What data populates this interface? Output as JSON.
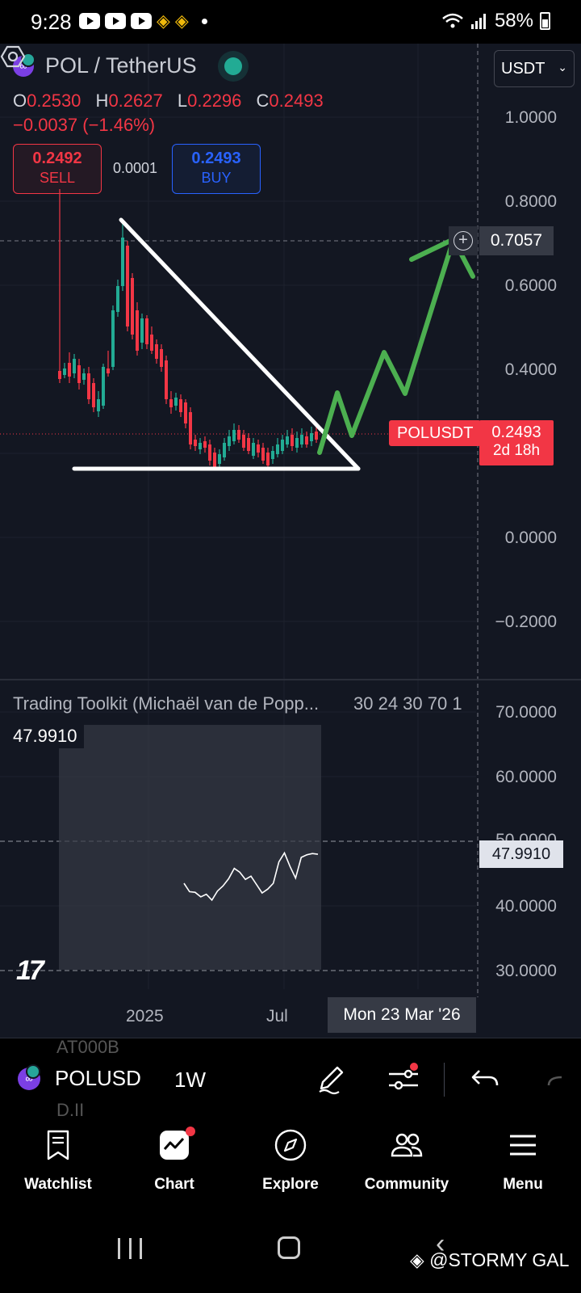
{
  "status_bar": {
    "time": "9:28",
    "battery": "58%"
  },
  "chart": {
    "symbol_title": "POL / TetherUS",
    "currency": "USDT",
    "ohlc": {
      "o_label": "O",
      "o": "0.2530",
      "h_label": "H",
      "h": "0.2627",
      "l_label": "L",
      "l": "0.2296",
      "c_label": "C",
      "c": "0.2493"
    },
    "change": "−0.0037 (−1.46%)",
    "sell": {
      "price": "0.2492",
      "label": "SELL"
    },
    "buy": {
      "price": "0.2493",
      "label": "BUY"
    },
    "spread": "0.0001",
    "price_axis": [
      "1.0000",
      "0.8000",
      "0.6000",
      "0.4000",
      "0.0000",
      "−0.2000"
    ],
    "crosshair_price": "0.7057",
    "symbol_tag": "POLUSDT",
    "last_price": "0.2493",
    "countdown": "2d 18h",
    "time_axis": [
      "2025",
      "Jul"
    ],
    "crosshair_date": "Mon 23 Mar '26"
  },
  "indicator": {
    "title": "Trading Toolkit (Michaël van de Popp...",
    "params": "30 24 30 70 1",
    "value": "47.9910",
    "axis": [
      "70.0000",
      "60.0000",
      "50.0000",
      "40.0000",
      "30.0000"
    ],
    "current": "47.9910"
  },
  "chart_data": {
    "type": "line",
    "series": [
      {
        "values": [
          43.5,
          42.2,
          42.1,
          41.4,
          41.8,
          40.9,
          42.3,
          43.1,
          44.2,
          45.8,
          45.2,
          44.1,
          44.6,
          43.3,
          42.0,
          42.6,
          43.5,
          46.8,
          48.2,
          46.1,
          44.3,
          47.5,
          47.9,
          48.1,
          47.99
        ]
      }
    ]
  },
  "toolbar": {
    "ghost_top": "AT000B",
    "ghost_bottom": "D.II",
    "symbol": "POLUSD",
    "interval": "1W"
  },
  "nav": {
    "watchlist": "Watchlist",
    "chart": "Chart",
    "explore": "Explore",
    "community": "Community",
    "menu": "Menu"
  },
  "watermark": "@STORMY GAL",
  "colors": {
    "up": "#22ab94",
    "down": "#f23645",
    "accent": "#2962ff",
    "background": "#131722"
  }
}
